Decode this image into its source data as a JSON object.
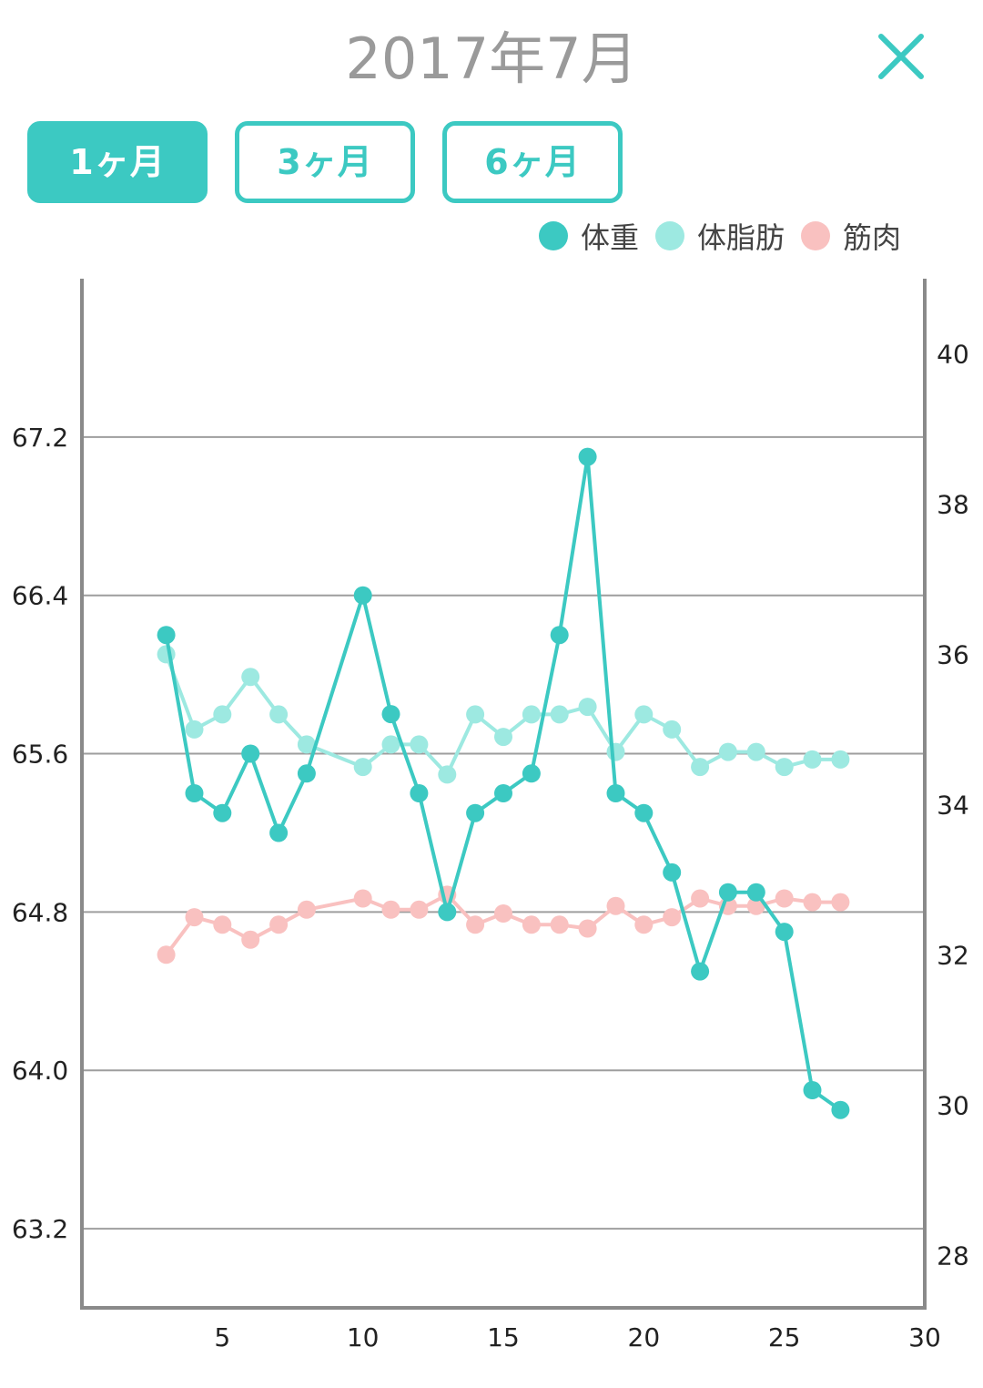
{
  "header": {
    "title": "2017年7月",
    "close_icon": "close-x-icon"
  },
  "tabs": [
    {
      "label": "1ヶ月",
      "active": true
    },
    {
      "label": "3ヶ月",
      "active": false
    },
    {
      "label": "6ヶ月",
      "active": false
    }
  ],
  "legend": [
    {
      "label": "体重",
      "color": "#3cc9c2"
    },
    {
      "label": "体脂肪",
      "color": "#9de9e1"
    },
    {
      "label": "筋肉",
      "color": "#f9c1c0"
    }
  ],
  "chart_data": {
    "type": "line",
    "x_range": [
      0,
      30
    ],
    "x_ticks": [
      5,
      10,
      15,
      20,
      25,
      30
    ],
    "left_axis": {
      "range": [
        62.8,
        68.0
      ],
      "ticks": [
        "63.2",
        "64.0",
        "64.8",
        "65.6",
        "66.4",
        "67.2"
      ]
    },
    "right_axis": {
      "range": [
        27.3,
        41.0
      ],
      "ticks": [
        "28",
        "30",
        "32",
        "34",
        "36",
        "38",
        "40"
      ]
    },
    "grid": true,
    "legend_position": "top-right",
    "series": [
      {
        "name": "体重",
        "axis": "left",
        "color": "#3cc9c2",
        "x": [
          3,
          4,
          5,
          6,
          7,
          8,
          10,
          11,
          12,
          13,
          14,
          15,
          16,
          17,
          18,
          19,
          20,
          21,
          22,
          23,
          24,
          25,
          26,
          27
        ],
        "y": [
          66.2,
          65.4,
          65.3,
          65.6,
          65.2,
          65.5,
          66.4,
          65.8,
          65.4,
          64.8,
          65.3,
          65.4,
          65.5,
          66.2,
          67.1,
          65.4,
          65.3,
          65.0,
          64.5,
          64.9,
          64.9,
          64.7,
          63.9,
          63.8
        ]
      },
      {
        "name": "体脂肪",
        "axis": "right",
        "color": "#9de9e1",
        "x": [
          3,
          4,
          5,
          6,
          7,
          8,
          10,
          11,
          12,
          13,
          14,
          15,
          16,
          17,
          18,
          19,
          20,
          21,
          22,
          23,
          24,
          25,
          26,
          27
        ],
        "y": [
          36.0,
          35.0,
          35.2,
          35.7,
          35.2,
          34.8,
          34.5,
          34.8,
          34.8,
          34.4,
          35.2,
          34.9,
          35.2,
          35.2,
          35.3,
          34.7,
          35.2,
          35.0,
          34.5,
          34.7,
          34.7,
          34.5,
          34.6,
          34.6
        ]
      },
      {
        "name": "筋肉",
        "axis": "right",
        "color": "#f9c1c0",
        "x": [
          3,
          4,
          5,
          6,
          7,
          8,
          10,
          11,
          12,
          13,
          14,
          15,
          16,
          17,
          18,
          19,
          20,
          21,
          22,
          23,
          24,
          25,
          26,
          27
        ],
        "y": [
          32.0,
          32.5,
          32.4,
          32.2,
          32.4,
          32.6,
          32.75,
          32.6,
          32.6,
          32.8,
          32.4,
          32.55,
          32.4,
          32.4,
          32.35,
          32.65,
          32.4,
          32.5,
          32.75,
          32.65,
          32.65,
          32.75,
          32.7,
          32.7
        ]
      }
    ]
  }
}
